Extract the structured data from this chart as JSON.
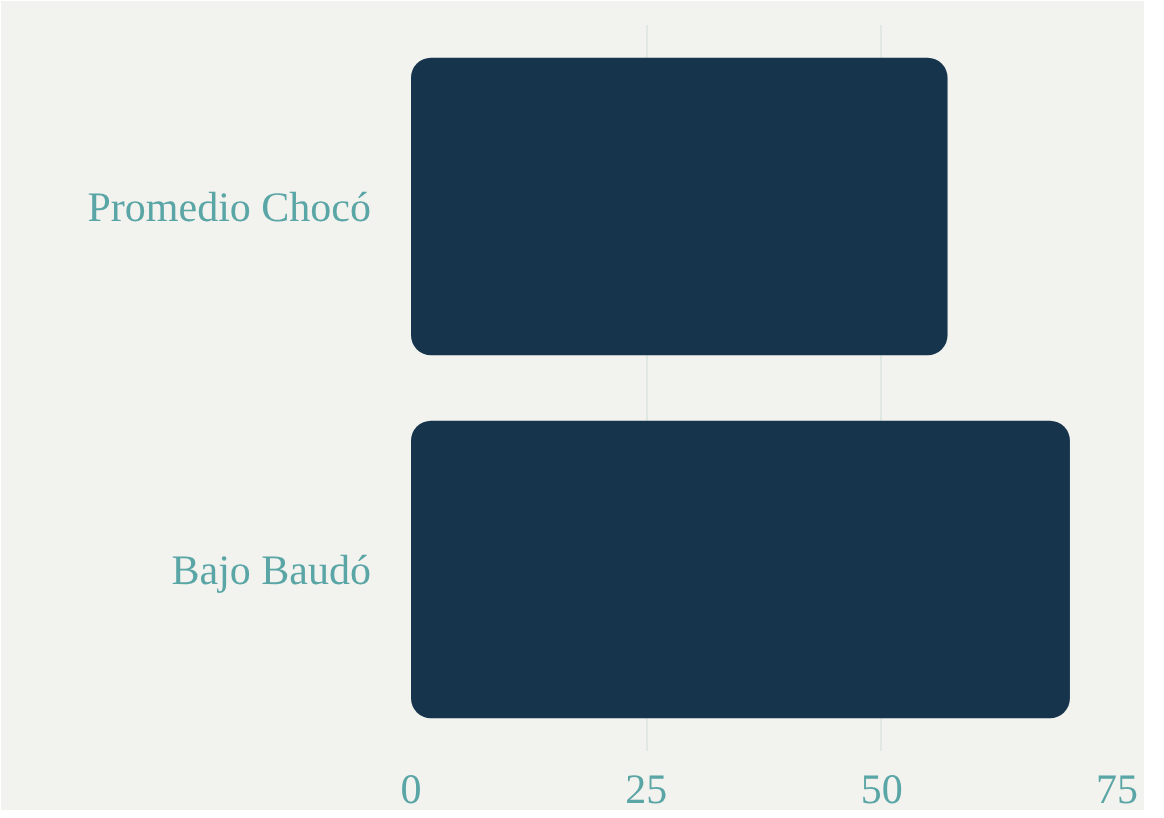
{
  "chart_data": {
    "type": "bar",
    "orientation": "horizontal",
    "categories": [
      "Promedio Chocó",
      "Bajo Baudó"
    ],
    "values": [
      57,
      70
    ],
    "color": "#16344c",
    "xlim": [
      0,
      75
    ],
    "xticks": [
      0,
      25,
      50,
      75
    ],
    "grid": "x"
  }
}
